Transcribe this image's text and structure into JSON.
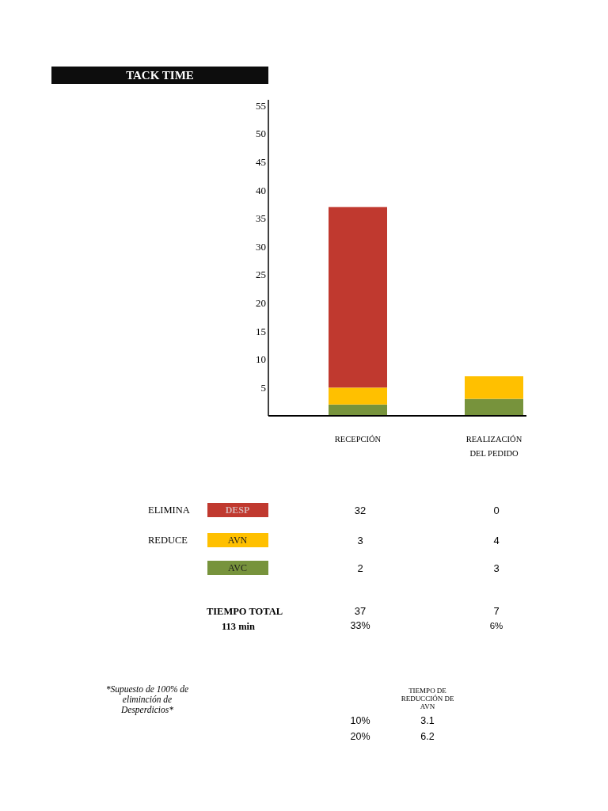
{
  "chart_data": {
    "type": "bar",
    "title": "TACK TIME",
    "categories": [
      "RECEPCIÓN",
      "REALIZACIÓN DEL PEDIDO"
    ],
    "stacked": true,
    "series": [
      {
        "name": "AVC",
        "color": "#77933c",
        "values": [
          2,
          3
        ]
      },
      {
        "name": "AVN",
        "color": "#ffc000",
        "values": [
          3,
          4
        ]
      },
      {
        "name": "DESP",
        "color": "#c0392f",
        "values": [
          32,
          0
        ]
      }
    ],
    "ylim": [
      0,
      56
    ],
    "yticks": [
      5,
      10,
      15,
      20,
      25,
      30,
      35,
      40,
      45,
      50,
      55
    ],
    "grid": false,
    "legend": "bottom",
    "data_labels": true,
    "annotations": [
      "ELIMINA",
      "REDUCE",
      "TIEMPO TOTAL",
      "113 min",
      "33%",
      "6%",
      "37",
      "7",
      "*Supuesto de 100% de eliminción de Desperdicios*",
      "TIEMPO DE REDUCCIÓN DE AVN",
      "10%",
      "3.1",
      "20%",
      "6.2"
    ]
  }
}
